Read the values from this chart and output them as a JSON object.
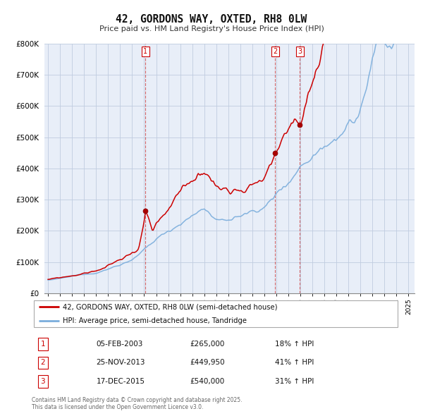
{
  "title": "42, GORDONS WAY, OXTED, RH8 0LW",
  "subtitle": "Price paid vs. HM Land Registry's House Price Index (HPI)",
  "legend_line1": "42, GORDONS WAY, OXTED, RH8 0LW (semi-detached house)",
  "legend_line2": "HPI: Average price, semi-detached house, Tandridge",
  "sale_color": "#cc0000",
  "hpi_color": "#7aaddc",
  "background_color": "#e8eef8",
  "grid_color": "#c8d4e8",
  "transactions": [
    {
      "label": "1",
      "date_str": "05-FEB-2003",
      "year": 2003.09,
      "price": 265000,
      "pct": "18%"
    },
    {
      "label": "2",
      "date_str": "25-NOV-2013",
      "year": 2013.9,
      "price": 449950,
      "pct": "41%"
    },
    {
      "label": "3",
      "date_str": "17-DEC-2015",
      "year": 2015.96,
      "price": 540000,
      "pct": "31%"
    }
  ],
  "footer_line1": "Contains HM Land Registry data © Crown copyright and database right 2025.",
  "footer_line2": "This data is licensed under the Open Government Licence v3.0.",
  "ylim_max": 800000,
  "xlim_start": 1994.7,
  "xlim_end": 2025.5
}
